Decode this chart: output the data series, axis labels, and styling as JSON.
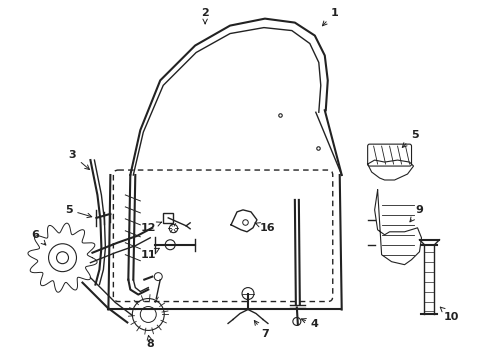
{
  "background_color": "#ffffff",
  "line_color": "#222222",
  "fig_width": 4.9,
  "fig_height": 3.6,
  "dpi": 100
}
